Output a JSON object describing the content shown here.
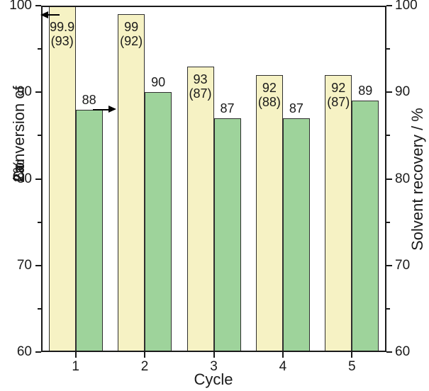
{
  "chart_data": {
    "type": "bar",
    "xlabel": "Cycle",
    "ylabel_left": "Conversion of 2a / %",
    "ylabel_left_parts": {
      "pre": "Conversion of ",
      "bold": "2a",
      "post": " / %"
    },
    "ylabel_right": "Solvent recovery / %",
    "ylim": [
      60,
      100
    ],
    "yticks_major": [
      60,
      70,
      80,
      90,
      100
    ],
    "yticks_minor": [
      65,
      75,
      85,
      95
    ],
    "grid": false,
    "legend": "none",
    "categories": [
      "1",
      "2",
      "3",
      "4",
      "5"
    ],
    "series": [
      {
        "name": "Conversion of 2a",
        "axis": "left",
        "fill": "#F6F2C4",
        "stroke": "#2F2F2F",
        "values": [
          99.9,
          99,
          93,
          92,
          92
        ],
        "bar_labels": [
          [
            "99.9",
            "(93)"
          ],
          [
            "99",
            "(92)"
          ],
          [
            "93",
            "(87)"
          ],
          [
            "92",
            "(88)"
          ],
          [
            "92",
            "(87)"
          ]
        ],
        "label_placement": "inside-top"
      },
      {
        "name": "Solvent recovery",
        "axis": "right",
        "fill": "#9ED39B",
        "stroke": "#2F2F2F",
        "values": [
          88,
          90,
          87,
          87,
          89
        ],
        "bar_labels": [
          [
            "88"
          ],
          [
            "90"
          ],
          [
            "87"
          ],
          [
            "87"
          ],
          [
            "89"
          ]
        ],
        "label_placement": "above"
      }
    ],
    "annotations": [
      {
        "id": "left-axis-pointer-arrow",
        "shape": "arrow",
        "direction": "left",
        "value": 98.9,
        "category_index": 0
      },
      {
        "id": "right-axis-pointer-arrow",
        "shape": "arrow",
        "direction": "right",
        "value": 88,
        "category_index": 0
      }
    ],
    "axis_color": "#1A1A1A",
    "text_color": "#1A1A1A"
  }
}
